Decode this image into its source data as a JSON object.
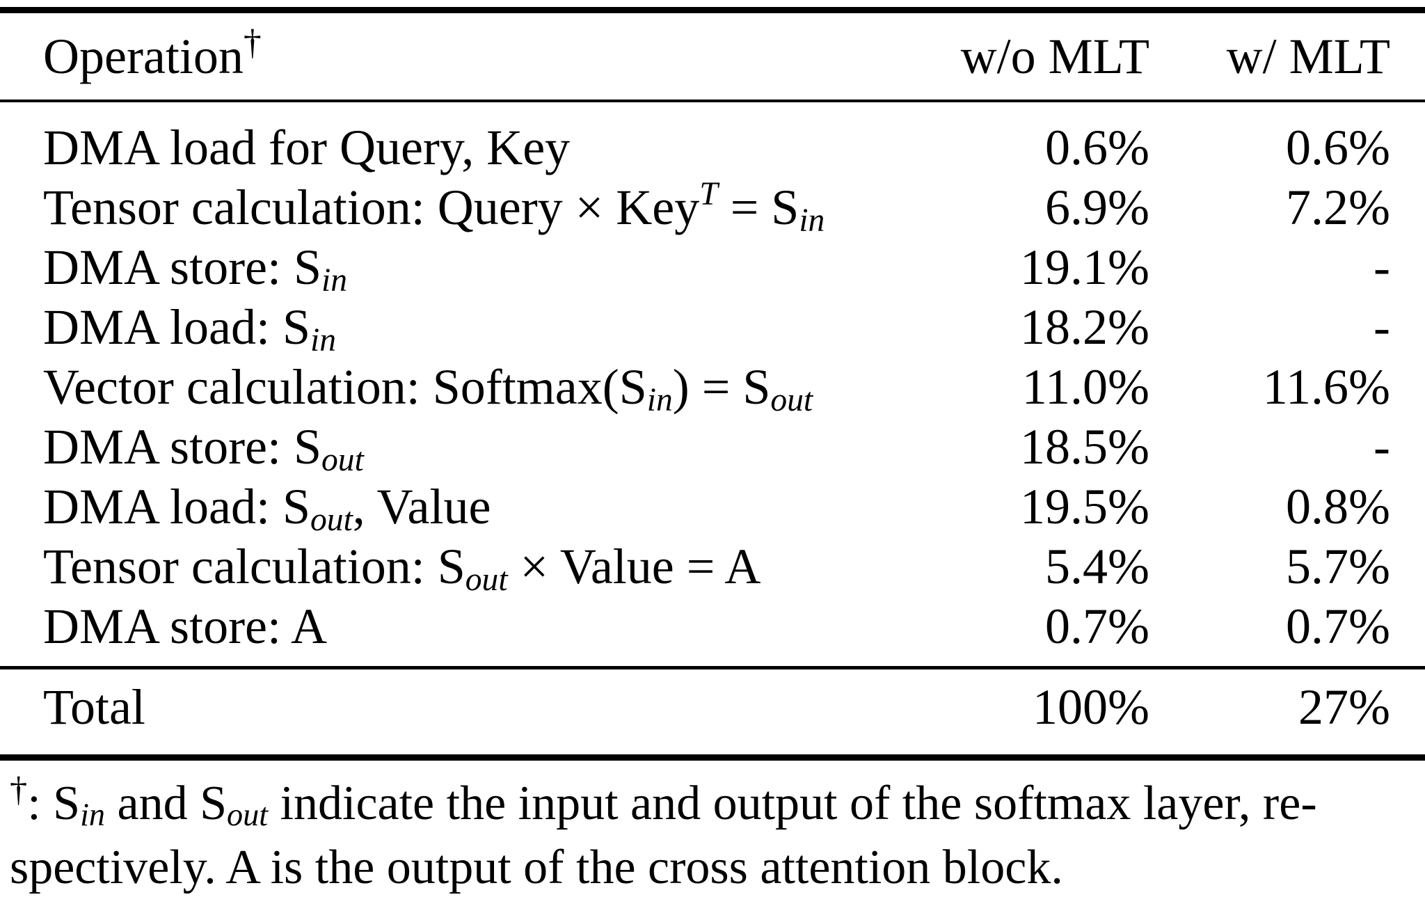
{
  "page": {
    "background_color": "#ffffff",
    "text_color": "#000000"
  },
  "table": {
    "header": {
      "operation": [
        {
          "t": "Operation"
        },
        {
          "mark": "†"
        }
      ],
      "col_without_mlt": "w/o MLT",
      "col_with_mlt": "w/ MLT"
    },
    "rows": [
      {
        "label": [
          {
            "t": "DMA load for Query, Key"
          }
        ],
        "without_mlt": "0.6%",
        "with_mlt": "0.6%"
      },
      {
        "label": [
          {
            "t": "Tensor calculation: Query × Key"
          },
          {
            "sup": "T"
          },
          {
            "t": " = S"
          },
          {
            "sub": "in"
          }
        ],
        "without_mlt": "6.9%",
        "with_mlt": "7.2%"
      },
      {
        "label": [
          {
            "t": "DMA store: S"
          },
          {
            "sub": "in"
          }
        ],
        "without_mlt": "19.1%",
        "with_mlt": "-"
      },
      {
        "label": [
          {
            "t": "DMA load: S"
          },
          {
            "sub": "in"
          }
        ],
        "without_mlt": "18.2%",
        "with_mlt": "-"
      },
      {
        "label": [
          {
            "t": "Vector calculation: Softmax(S"
          },
          {
            "sub": "in"
          },
          {
            "t": ") = S"
          },
          {
            "sub": "out"
          }
        ],
        "without_mlt": "11.0%",
        "with_mlt": "11.6%"
      },
      {
        "label": [
          {
            "t": "DMA store: S"
          },
          {
            "sub": "out"
          }
        ],
        "without_mlt": "18.5%",
        "with_mlt": "-"
      },
      {
        "label": [
          {
            "t": "DMA load: S"
          },
          {
            "sub": "out"
          },
          {
            "t": ", Value"
          }
        ],
        "without_mlt": "19.5%",
        "with_mlt": "0.8%"
      },
      {
        "label": [
          {
            "t": "Tensor calculation: S"
          },
          {
            "sub": "out"
          },
          {
            "t": " × Value = A"
          }
        ],
        "without_mlt": "5.4%",
        "with_mlt": "5.7%"
      },
      {
        "label": [
          {
            "t": "DMA store: A"
          }
        ],
        "without_mlt": "0.7%",
        "with_mlt": "0.7%"
      }
    ],
    "total": {
      "label": "Total",
      "without_mlt": "100%",
      "with_mlt": "27%"
    }
  },
  "footnote": {
    "lines": [
      [
        {
          "mark": "†"
        },
        {
          "t": ": S"
        },
        {
          "sub": "in"
        },
        {
          "t": " and S"
        },
        {
          "sub": "out"
        },
        {
          "t": " indicate the input and output of the softmax layer, re-"
        }
      ],
      [
        {
          "t": "spectively. A is the output of the cross attention block."
        }
      ]
    ]
  }
}
